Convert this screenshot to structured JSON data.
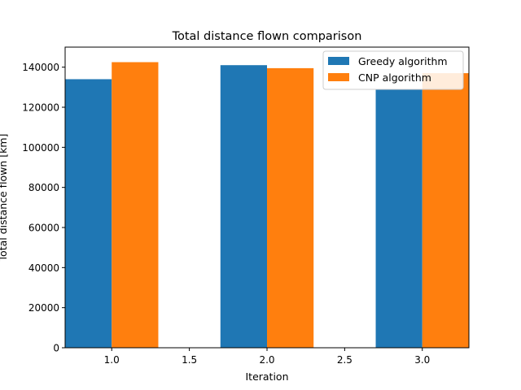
{
  "chart_data": {
    "type": "bar",
    "title": "Total distance flown comparison",
    "xlabel": "Iteration",
    "ylabel": "Total distance flown [km]",
    "x": [
      1.0,
      2.0,
      3.0
    ],
    "xlim": [
      0.7,
      3.3
    ],
    "ylim": [
      0,
      150000
    ],
    "xticks": [
      1.0,
      1.5,
      2.0,
      2.5,
      3.0
    ],
    "xtick_labels": [
      "1.0",
      "1.5",
      "2.0",
      "2.5",
      "3.0"
    ],
    "yticks": [
      0,
      20000,
      40000,
      60000,
      80000,
      100000,
      120000,
      140000
    ],
    "ytick_labels": [
      "0",
      "20000",
      "40000",
      "60000",
      "80000",
      "100000",
      "120000",
      "140000"
    ],
    "bar_width": 0.3,
    "series": [
      {
        "name": "Greedy algorithm",
        "color": "#1f77b4",
        "offset": -0.15,
        "values": [
          134000,
          141000,
          129000
        ]
      },
      {
        "name": "CNP algorithm",
        "color": "#ff7f0e",
        "offset": 0.15,
        "values": [
          142500,
          139500,
          137000
        ]
      }
    ],
    "legend_position": "top-right",
    "grid": false
  }
}
